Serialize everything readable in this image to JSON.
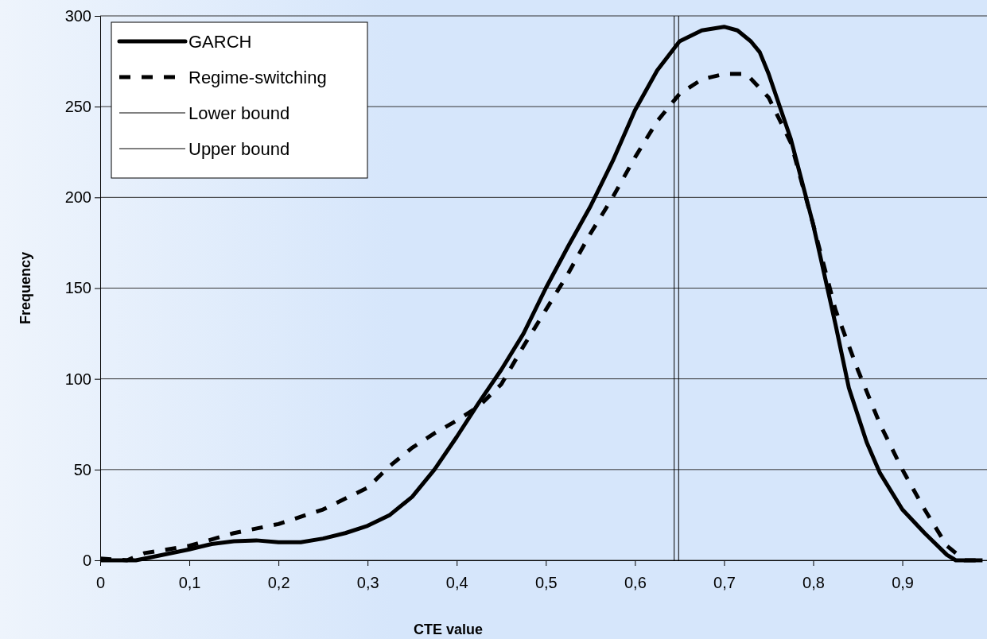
{
  "chart_data": {
    "type": "line",
    "xlabel": "CTE value",
    "ylabel": "Frequency",
    "xlim": [
      0,
      0.995
    ],
    "ylim": [
      0,
      300
    ],
    "xticks": [
      0,
      {
        "value": 0.1,
        "label": "0,1"
      },
      {
        "value": 0.2,
        "label": "0,2"
      },
      {
        "value": 0.3,
        "label": "0,3"
      },
      {
        "value": 0.4,
        "label": "0,4"
      },
      {
        "value": 0.5,
        "label": "0,5"
      },
      {
        "value": 0.6,
        "label": "0,6"
      },
      {
        "value": 0.7,
        "label": "0,7"
      },
      {
        "value": 0.8,
        "label": "0,8"
      },
      {
        "value": 0.9,
        "label": "0,9"
      }
    ],
    "yticks": [
      0,
      50,
      100,
      150,
      200,
      250,
      300
    ],
    "grid": "y",
    "legend": "top left",
    "marker": "none",
    "series": [
      {
        "name": "GARCH",
        "color": "#000000",
        "line_style": "solid",
        "x": [
          0,
          0.04,
          0.05,
          0.1,
          0.125,
          0.15,
          0.175,
          0.2,
          0.225,
          0.25,
          0.275,
          0.3,
          0.325,
          0.35,
          0.375,
          0.4,
          0.425,
          0.45,
          0.475,
          0.5,
          0.525,
          0.55,
          0.575,
          0.6,
          0.625,
          0.65,
          0.675,
          0.7,
          0.715,
          0.73,
          0.74,
          0.75,
          0.775,
          0.8,
          0.825,
          0.84,
          0.86,
          0.875,
          0.9,
          0.925,
          0.95,
          0.96,
          0.99
        ],
        "values": [
          0,
          0,
          1,
          6,
          9,
          10.5,
          11,
          10,
          10,
          12,
          15,
          19,
          25,
          35,
          50,
          68,
          87,
          105,
          125,
          150,
          173,
          195,
          220,
          248,
          270,
          286,
          292,
          294,
          292,
          286,
          280,
          268,
          232,
          185,
          130,
          95,
          65,
          48,
          28,
          15,
          3,
          0,
          0
        ]
      },
      {
        "name": "Regime-switching",
        "color": "#000000",
        "line_style": "dashed",
        "x": [
          0,
          0.03,
          0.05,
          0.1,
          0.15,
          0.2,
          0.25,
          0.3,
          0.325,
          0.35,
          0.375,
          0.4,
          0.425,
          0.45,
          0.475,
          0.5,
          0.525,
          0.55,
          0.575,
          0.6,
          0.625,
          0.65,
          0.675,
          0.7,
          0.725,
          0.75,
          0.775,
          0.8,
          0.825,
          0.85,
          0.875,
          0.9,
          0.925,
          0.95,
          0.97,
          0.99
        ],
        "values": [
          1,
          0,
          4,
          8,
          15,
          20,
          28,
          40,
          52,
          62,
          70,
          77,
          85,
          97,
          118,
          138,
          158,
          180,
          200,
          222,
          242,
          257,
          265,
          268,
          268,
          255,
          230,
          185,
          138,
          105,
          75,
          50,
          28,
          8,
          0,
          0
        ]
      },
      {
        "name": "Lower bound",
        "color": "#000000",
        "line_style": "solid",
        "x": [
          0.644,
          0.644
        ],
        "values": [
          0,
          300
        ]
      },
      {
        "name": "Upper bound",
        "color": "#000000",
        "line_style": "solid",
        "x": [
          0.649,
          0.649
        ],
        "values": [
          0,
          300
        ]
      }
    ]
  }
}
